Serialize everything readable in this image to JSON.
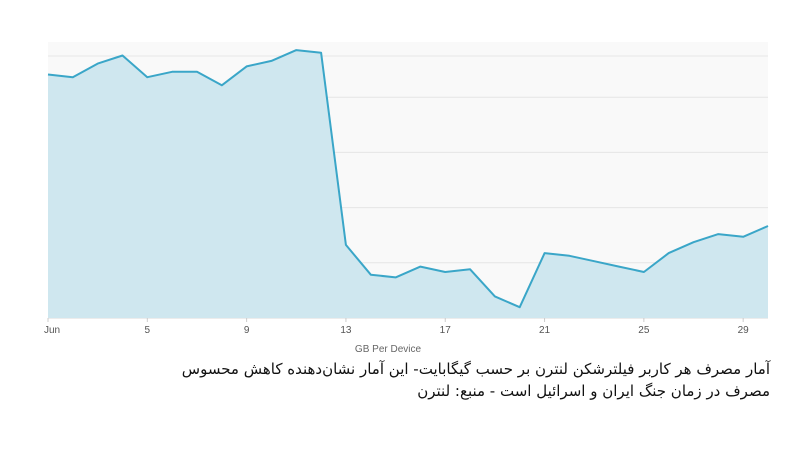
{
  "chart_data": {
    "type": "area",
    "title": "",
    "xlabel": "GB Per Device",
    "ylabel": "",
    "x_tick_labels": [
      "Jun",
      "5",
      "9",
      "13",
      "17",
      "21",
      "25",
      "29"
    ],
    "x_ticks": [
      1,
      5,
      9,
      13,
      17,
      21,
      25,
      29
    ],
    "xlim": [
      1,
      30
    ],
    "grid": true,
    "legend": "none",
    "colors": {
      "line": "#3aa6c8",
      "fill": "#cfe7ef",
      "grid": "#e6e6e6",
      "bg": "#f9f9f9"
    },
    "series": [
      {
        "x": [
          1,
          2,
          3,
          4,
          5,
          6,
          7,
          8,
          9,
          10,
          11,
          12,
          13,
          14,
          15,
          16,
          17,
          18,
          19,
          20,
          21,
          22,
          23,
          24,
          25,
          26,
          27,
          28,
          29,
          30
        ],
        "values": [
          90,
          89,
          94,
          97,
          89,
          91,
          91,
          86,
          93,
          95,
          99,
          98,
          27,
          16,
          15,
          19,
          17,
          18,
          8,
          4,
          24,
          23,
          21,
          19,
          17,
          24,
          28,
          31,
          30,
          34
        ]
      }
    ]
  },
  "caption": {
    "line1": "آمار مصرف هر کاربر فیلترشکن لنترن بر حسب گیگابایت- این آمار نشان‌دهنده کاهش محسوس",
    "line2": "مصرف در زمان جنگ ایران و اسرائیل است - منبع: لنترن"
  }
}
